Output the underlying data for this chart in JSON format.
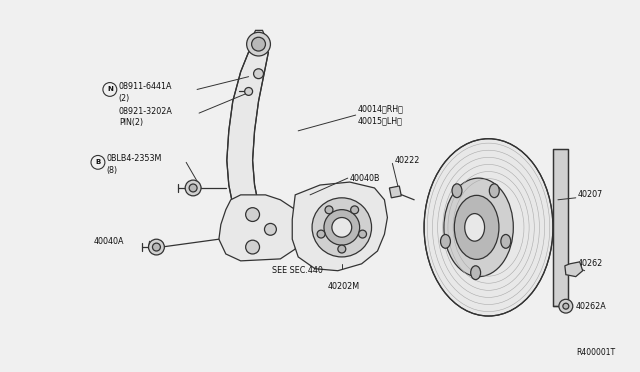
{
  "background_color": "#f0f0f0",
  "fig_ref": "R400001T",
  "line_color": "#333333",
  "text_color": "#111111",
  "fill_light": "#e8e8e8",
  "fill_mid": "#d0d0d0",
  "fill_dark": "#b8b8b8",
  "lw": 0.9,
  "fs": 5.8,
  "labels": {
    "N_part": "08911-6441A",
    "N_sub": "(2)",
    "pin_part": "08921-3202A",
    "pin_sub": "PIN(2)",
    "B_part": "0BLB4-2353M",
    "B_sub": "(8)",
    "rh": "40014〈RH〉",
    "lh": "40015〈LH〉",
    "b40040b": "40040B",
    "b40222": "40222",
    "b40040a": "40040A",
    "secsec": "SEE SEC.440",
    "b40202m": "40202M",
    "b40207": "40207",
    "b40262": "40262",
    "b40262a": "40262A",
    "ref": "R400001T"
  }
}
